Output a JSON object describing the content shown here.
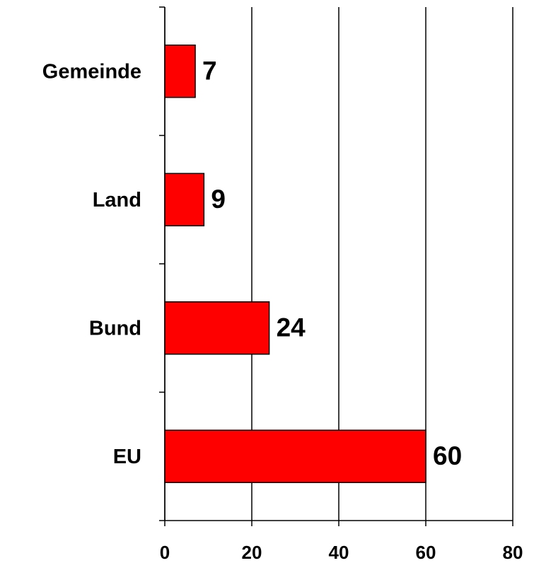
{
  "chart_data": {
    "type": "barh",
    "categories": [
      "Gemeinde",
      "Land",
      "Bund",
      "EU"
    ],
    "values": [
      7,
      9,
      24,
      60
    ],
    "color": "#ff0000",
    "xlim": [
      0,
      80
    ],
    "xticks": [
      0,
      20,
      40,
      60,
      80
    ],
    "grid": true
  }
}
